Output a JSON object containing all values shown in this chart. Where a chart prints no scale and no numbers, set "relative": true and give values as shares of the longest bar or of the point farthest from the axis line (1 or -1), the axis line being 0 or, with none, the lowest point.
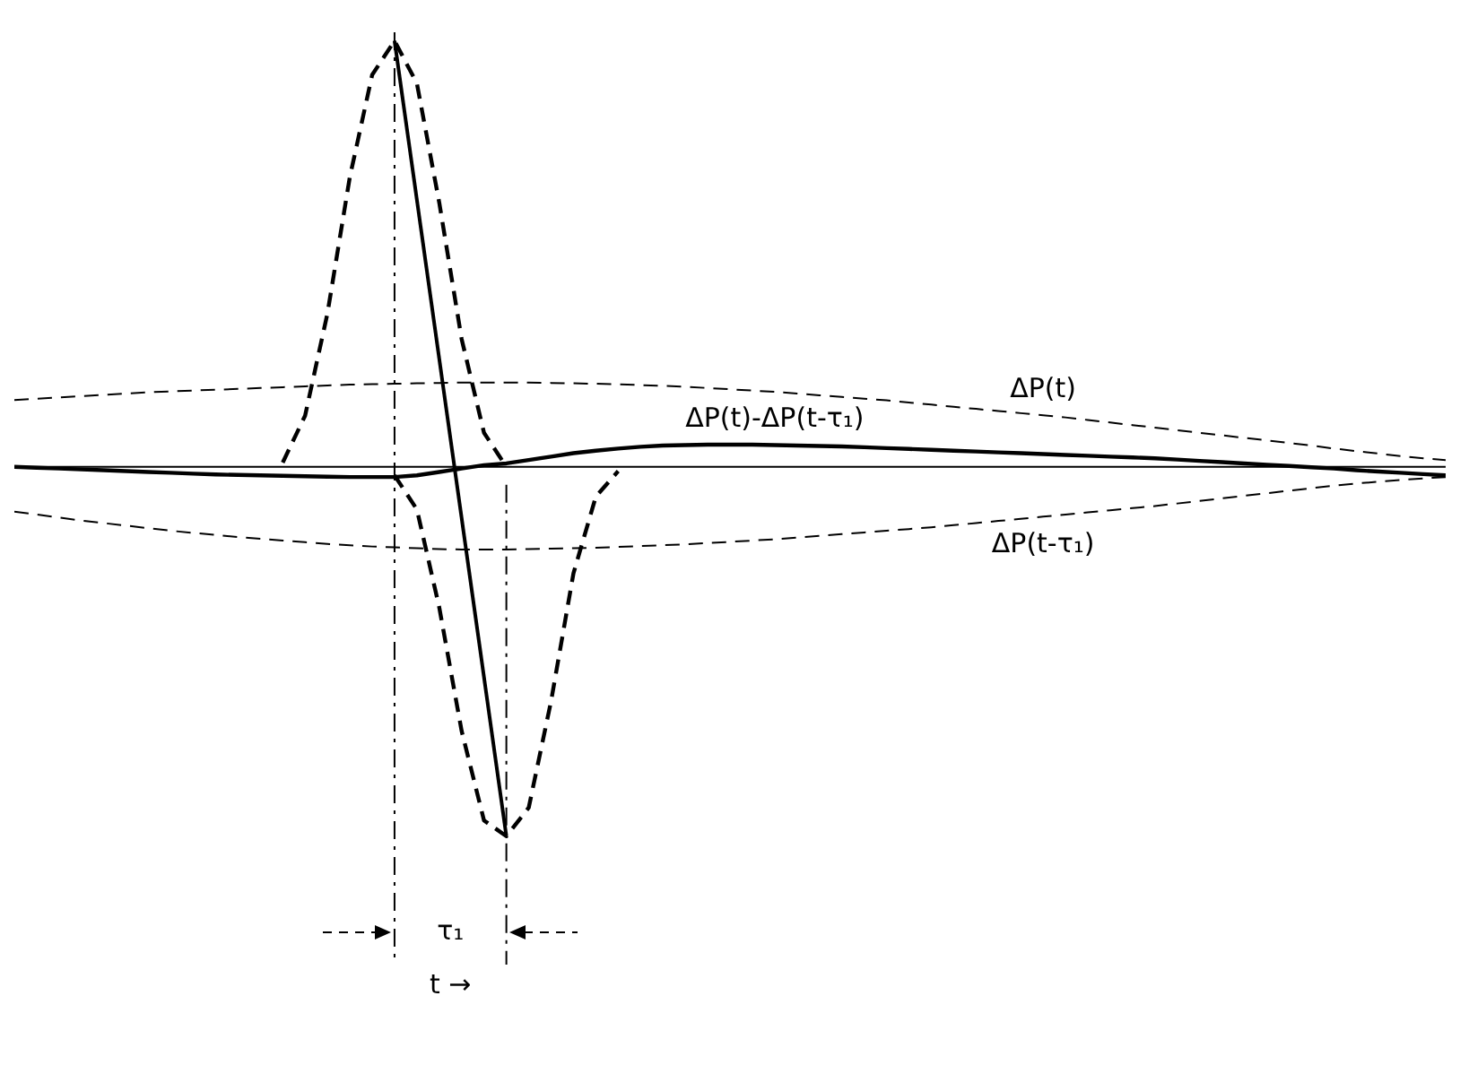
{
  "chart_data": {
    "type": "line",
    "relative": true,
    "legend": false,
    "marker": "none",
    "categories": [
      null,
      null,
      null,
      null,
      null,
      null,
      null,
      null,
      null,
      null,
      null,
      null,
      null,
      null,
      null,
      null,
      null,
      null,
      null,
      null,
      null,
      null,
      null,
      null,
      null,
      null,
      null,
      null,
      null,
      null,
      null,
      null,
      null,
      null,
      null,
      null,
      null,
      null,
      null,
      null,
      null,
      null,
      null,
      null,
      null,
      null,
      null,
      null,
      null,
      null,
      null,
      null,
      null,
      null,
      null,
      null,
      null,
      null,
      null,
      null,
      null,
      null,
      null,
      null,
      null
    ],
    "series": [
      {
        "name": "ΔP(t)",
        "color": "#000000",
        "line_style": "dashed",
        "values": [
          0.157,
          0.16,
          0.163,
          0.166,
          0.169,
          0.172,
          0.175,
          0.177,
          0.179,
          0.181,
          0.183,
          0.185,
          0.187,
          0.189,
          0.191,
          0.193,
          0.194,
          0.195,
          0.196,
          0.197,
          0.198,
          0.198,
          0.198,
          0.198,
          0.197,
          0.196,
          0.195,
          0.194,
          0.192,
          0.19,
          0.188,
          0.185,
          0.182,
          0.179,
          0.176,
          0.172,
          0.168,
          0.164,
          0.16,
          0.156,
          0.151,
          0.146,
          0.141,
          0.136,
          0.131,
          0.126,
          0.121,
          0.116,
          0.11,
          0.104,
          0.098,
          0.092,
          0.086,
          0.08,
          0.074,
          0.068,
          0.062,
          0.056,
          0.05,
          0.043,
          0.037,
          0.031,
          0.025,
          0.02,
          0.016
        ]
      },
      {
        "name": "ΔP(t-τ₁)",
        "color": "#000000",
        "line_style": "dashed",
        "values": [
          -0.105,
          -0.112,
          -0.119,
          -0.126,
          -0.132,
          -0.138,
          -0.144,
          -0.15,
          -0.155,
          -0.16,
          -0.165,
          -0.169,
          -0.173,
          -0.177,
          -0.181,
          -0.184,
          -0.187,
          -0.189,
          -0.191,
          -0.193,
          -0.194,
          -0.194,
          -0.194,
          -0.193,
          -0.192,
          -0.191,
          -0.19,
          -0.188,
          -0.186,
          -0.184,
          -0.182,
          -0.179,
          -0.176,
          -0.173,
          -0.17,
          -0.166,
          -0.162,
          -0.158,
          -0.154,
          -0.15,
          -0.146,
          -0.142,
          -0.137,
          -0.132,
          -0.127,
          -0.122,
          -0.117,
          -0.112,
          -0.107,
          -0.102,
          -0.097,
          -0.092,
          -0.086,
          -0.08,
          -0.074,
          -0.068,
          -0.062,
          -0.056,
          -0.05,
          -0.044,
          -0.039,
          -0.035,
          -0.031,
          -0.027,
          -0.024
        ]
      },
      {
        "color": "#000000",
        "line_style": "dashed",
        "values": [
          null,
          null,
          null,
          null,
          null,
          null,
          null,
          null,
          null,
          null,
          null,
          null,
          0.01,
          0.12,
          0.36,
          0.68,
          0.92,
          1.0,
          0.9,
          0.62,
          0.3,
          0.08,
          0,
          null,
          null,
          null,
          null,
          null,
          null,
          null,
          null,
          null,
          null,
          null,
          null,
          null,
          null,
          null,
          null,
          null,
          null,
          null,
          null,
          null,
          null,
          null,
          null,
          null,
          null,
          null,
          null,
          null,
          null,
          null,
          null,
          null,
          null,
          null,
          null,
          null,
          null,
          null,
          null,
          null,
          null
        ]
      },
      {
        "color": "#000000",
        "line_style": "dashed",
        "values": [
          null,
          null,
          null,
          null,
          null,
          null,
          null,
          null,
          null,
          null,
          null,
          null,
          null,
          null,
          null,
          null,
          null,
          -0.02,
          -0.1,
          -0.33,
          -0.62,
          -0.83,
          -0.867,
          -0.8,
          -0.55,
          -0.25,
          -0.07,
          -0.01,
          null,
          null,
          null,
          null,
          null,
          null,
          null,
          null,
          null,
          null,
          null,
          null,
          null,
          null,
          null,
          null,
          null,
          null,
          null,
          null,
          null,
          null,
          null,
          null,
          null,
          null,
          null,
          null,
          null,
          null,
          null,
          null,
          null,
          null,
          null,
          null,
          null
        ]
      },
      {
        "name": "ΔP(t)-ΔP(t-τ₁)",
        "color": "#000000",
        "line_style": "solid",
        "values": [
          0,
          -0.002,
          -0.004,
          -0.006,
          -0.008,
          -0.01,
          -0.012,
          -0.014,
          -0.016,
          -0.018,
          -0.019,
          -0.02,
          -0.021,
          -0.022,
          -0.023,
          -0.024,
          -0.024,
          -0.024,
          -0.02,
          -0.012,
          -0.004,
          0.004,
          0.008,
          0.016,
          0.024,
          0.032,
          0.038,
          0.043,
          0.047,
          0.05,
          0.051,
          0.052,
          0.052,
          0.052,
          0.051,
          0.05,
          0.049,
          0.048,
          0.046,
          0.044,
          0.042,
          0.04,
          0.038,
          0.036,
          0.034,
          0.032,
          0.03,
          0.028,
          0.026,
          0.024,
          0.022,
          0.02,
          0.017,
          0.014,
          0.011,
          0.008,
          0.005,
          0.002,
          -0.001,
          -0.004,
          -0.008,
          -0.011,
          -0.014,
          -0.017,
          -0.02
        ]
      },
      {
        "color": "#000000",
        "line_style": "solid",
        "values": [
          null,
          null,
          null,
          null,
          null,
          null,
          null,
          null,
          null,
          null,
          null,
          null,
          null,
          null,
          null,
          null,
          null,
          1.0,
          null,
          null,
          null,
          null,
          -0.867,
          null,
          null,
          null,
          null,
          null,
          null,
          null,
          null,
          null,
          null,
          null,
          null,
          null,
          null,
          null,
          null,
          null,
          null,
          null,
          null,
          null,
          null,
          null,
          null,
          null,
          null,
          null,
          null,
          null,
          null,
          null,
          null,
          null,
          null,
          null,
          null,
          null,
          null,
          null,
          null,
          null,
          null
        ]
      }
    ],
    "annotations": [
      "τ₁",
      "t →"
    ]
  }
}
